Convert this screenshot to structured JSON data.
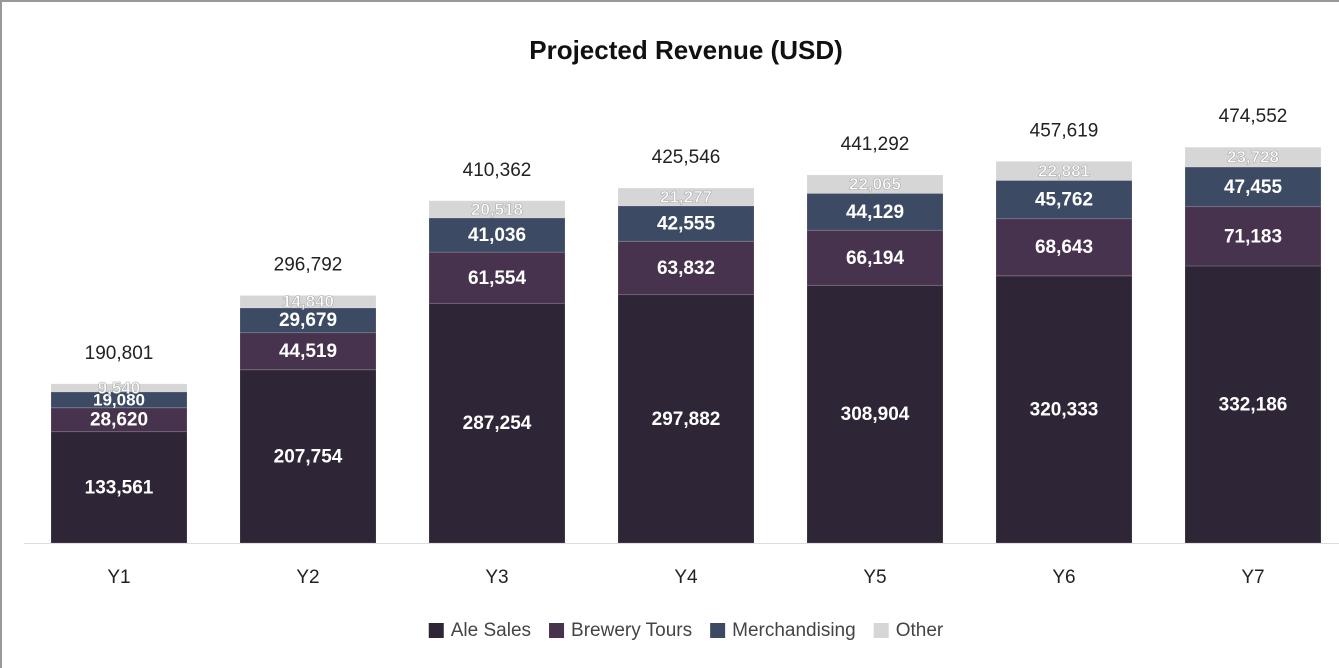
{
  "chart_data": {
    "type": "stacked_bar",
    "title": "Projected Revenue (USD)",
    "categories": [
      "Y1",
      "Y2",
      "Y3",
      "Y4",
      "Y5",
      "Y6",
      "Y7"
    ],
    "series": [
      {
        "name": "Ale Sales",
        "color": "#2e2536",
        "values": [
          133561,
          207754,
          287254,
          297882,
          308904,
          320333,
          332186
        ],
        "value_labels": [
          "133,561",
          "207,754",
          "287,254",
          "297,882",
          "308,904",
          "320,333",
          "332,186"
        ]
      },
      {
        "name": "Brewery Tours",
        "color": "#47334d",
        "values": [
          28620,
          44519,
          61554,
          63832,
          66194,
          68643,
          71183
        ],
        "value_labels": [
          "28,620",
          "44,519",
          "61,554",
          "63,832",
          "66,194",
          "68,643",
          "71,183"
        ]
      },
      {
        "name": "Merchandising",
        "color": "#3c4a63",
        "values": [
          19080,
          29679,
          41036,
          42555,
          44129,
          45762,
          47455
        ],
        "value_labels": [
          "19,080",
          "29,679",
          "41,036",
          "42,555",
          "44,129",
          "45,762",
          "47,455"
        ]
      },
      {
        "name": "Other",
        "color": "#d6d6d6",
        "values": [
          9540,
          14840,
          20518,
          21277,
          22065,
          22881,
          23728
        ],
        "value_labels": [
          "9,540",
          "14,840",
          "20,518",
          "21,277",
          "22,065",
          "22,881",
          "23,728"
        ]
      }
    ],
    "totals": [
      190801,
      296792,
      410362,
      425546,
      441292,
      457619,
      474552
    ],
    "total_labels": [
      "190,801",
      "296,792",
      "410,362",
      "425,546",
      "441,292",
      "457,619",
      "474,552"
    ],
    "ylim": [
      0,
      500000
    ],
    "legend": "bottom"
  }
}
